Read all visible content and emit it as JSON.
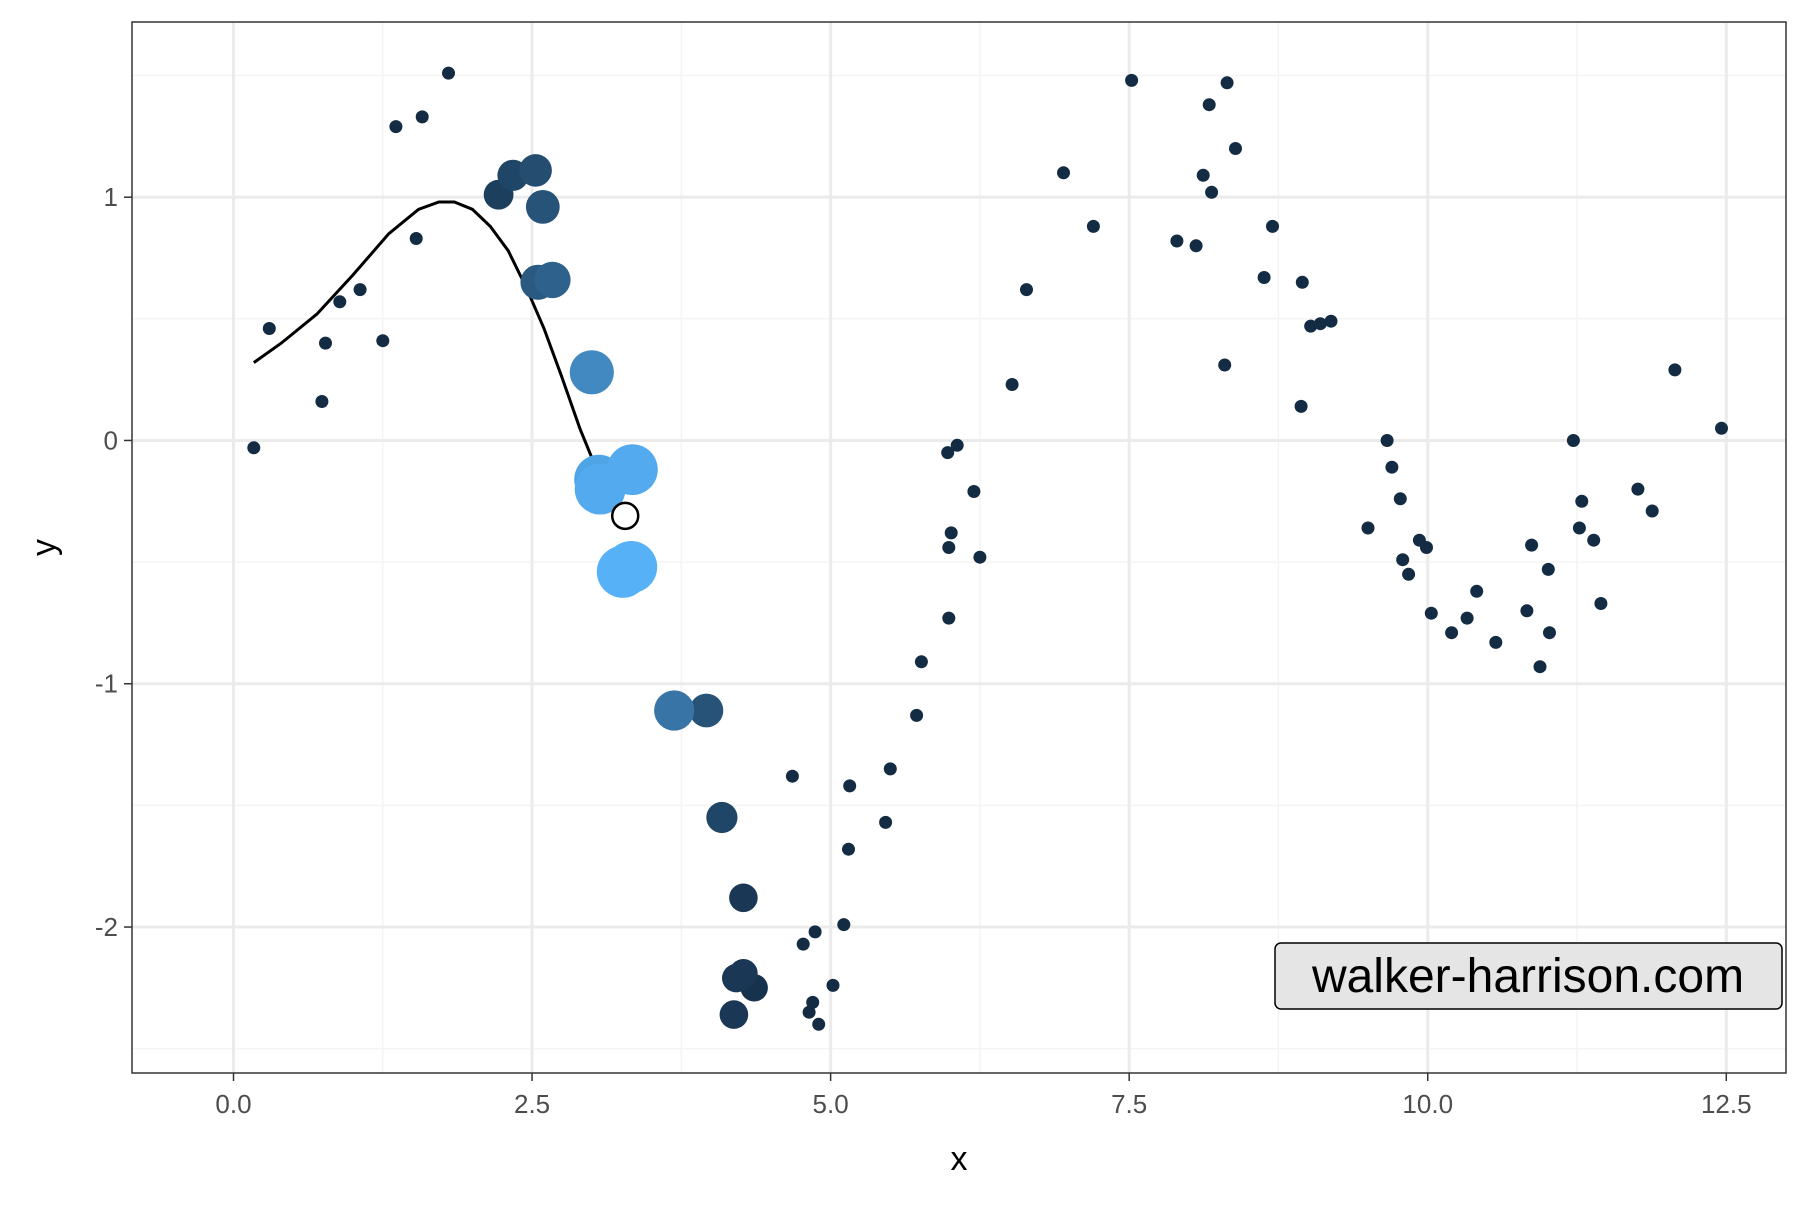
{
  "chart_data": {
    "type": "scatter",
    "title": "",
    "xlabel": "x",
    "ylabel": "y",
    "xlim": [
      -0.85,
      13.0
    ],
    "ylim": [
      -2.6,
      1.72
    ],
    "x_ticks": [
      0.0,
      2.5,
      5.0,
      7.5,
      10.0,
      12.5
    ],
    "x_tick_labels": [
      "0.0",
      "2.5",
      "5.0",
      "7.5",
      "10.0",
      "12.5"
    ],
    "y_ticks": [
      -2,
      -1,
      0,
      1
    ],
    "y_tick_labels": [
      "-2",
      "-1",
      "0",
      "1"
    ],
    "grid": true,
    "legend": "none",
    "points": [
      {
        "x": 0.17,
        "y": -0.03,
        "w": 0
      },
      {
        "x": 0.3,
        "y": 0.46,
        "w": 0
      },
      {
        "x": 0.74,
        "y": 0.16,
        "w": 0
      },
      {
        "x": 0.77,
        "y": 0.4,
        "w": 0
      },
      {
        "x": 0.89,
        "y": 0.57,
        "w": 0
      },
      {
        "x": 1.06,
        "y": 0.62,
        "w": 0
      },
      {
        "x": 1.25,
        "y": 0.41,
        "w": 0
      },
      {
        "x": 1.36,
        "y": 1.29,
        "w": 0
      },
      {
        "x": 1.53,
        "y": 0.83,
        "w": 0
      },
      {
        "x": 1.58,
        "y": 1.33,
        "w": 0
      },
      {
        "x": 1.8,
        "y": 1.51,
        "w": 0
      },
      {
        "x": 2.22,
        "y": 1.01,
        "w": 0.15
      },
      {
        "x": 2.34,
        "y": 1.09,
        "w": 0.2
      },
      {
        "x": 2.53,
        "y": 1.11,
        "w": 0.25
      },
      {
        "x": 2.59,
        "y": 0.96,
        "w": 0.3
      },
      {
        "x": 2.55,
        "y": 0.65,
        "w": 0.35
      },
      {
        "x": 2.67,
        "y": 0.66,
        "w": 0.4
      },
      {
        "x": 3.0,
        "y": 0.28,
        "w": 0.7
      },
      {
        "x": 3.06,
        "y": -0.16,
        "w": 0.9
      },
      {
        "x": 3.07,
        "y": -0.2,
        "w": 0.95
      },
      {
        "x": 3.34,
        "y": -0.12,
        "w": 0.95
      },
      {
        "x": 3.26,
        "y": -0.54,
        "w": 1.0
      },
      {
        "x": 3.33,
        "y": -0.52,
        "w": 1.0
      },
      {
        "x": 3.69,
        "y": -1.11,
        "w": 0.55
      },
      {
        "x": 3.96,
        "y": -1.11,
        "w": 0.3
      },
      {
        "x": 4.09,
        "y": -1.55,
        "w": 0.2
      },
      {
        "x": 4.27,
        "y": -1.88,
        "w": 0.1
      },
      {
        "x": 4.21,
        "y": -2.21,
        "w": 0.1
      },
      {
        "x": 4.27,
        "y": -2.19,
        "w": 0.1
      },
      {
        "x": 4.36,
        "y": -2.25,
        "w": 0.05
      },
      {
        "x": 4.19,
        "y": -2.36,
        "w": 0.1
      },
      {
        "x": 4.68,
        "y": -1.38,
        "w": 0
      },
      {
        "x": 4.77,
        "y": -2.07,
        "w": 0
      },
      {
        "x": 4.82,
        "y": -2.35,
        "w": 0
      },
      {
        "x": 4.85,
        "y": -2.31,
        "w": 0
      },
      {
        "x": 4.87,
        "y": -2.02,
        "w": 0
      },
      {
        "x": 4.9,
        "y": -2.4,
        "w": 0
      },
      {
        "x": 5.02,
        "y": -2.24,
        "w": 0
      },
      {
        "x": 5.11,
        "y": -1.99,
        "w": 0
      },
      {
        "x": 5.15,
        "y": -1.68,
        "w": 0
      },
      {
        "x": 5.16,
        "y": -1.42,
        "w": 0
      },
      {
        "x": 5.46,
        "y": -1.57,
        "w": 0
      },
      {
        "x": 5.5,
        "y": -1.35,
        "w": 0
      },
      {
        "x": 5.72,
        "y": -1.13,
        "w": 0
      },
      {
        "x": 5.76,
        "y": -0.91,
        "w": 0
      },
      {
        "x": 5.98,
        "y": -0.05,
        "w": 0
      },
      {
        "x": 5.99,
        "y": -0.44,
        "w": 0
      },
      {
        "x": 5.99,
        "y": -0.73,
        "w": 0
      },
      {
        "x": 6.01,
        "y": -0.38,
        "w": 0
      },
      {
        "x": 6.06,
        "y": -0.02,
        "w": 0
      },
      {
        "x": 6.2,
        "y": -0.21,
        "w": 0
      },
      {
        "x": 6.25,
        "y": -0.48,
        "w": 0
      },
      {
        "x": 6.52,
        "y": 0.23,
        "w": 0
      },
      {
        "x": 6.64,
        "y": 0.62,
        "w": 0
      },
      {
        "x": 6.95,
        "y": 1.1,
        "w": 0
      },
      {
        "x": 7.2,
        "y": 0.88,
        "w": 0
      },
      {
        "x": 7.52,
        "y": 1.48,
        "w": 0
      },
      {
        "x": 7.9,
        "y": 0.82,
        "w": 0
      },
      {
        "x": 8.06,
        "y": 0.8,
        "w": 0
      },
      {
        "x": 8.12,
        "y": 1.09,
        "w": 0
      },
      {
        "x": 8.17,
        "y": 1.38,
        "w": 0
      },
      {
        "x": 8.19,
        "y": 1.02,
        "w": 0
      },
      {
        "x": 8.3,
        "y": 0.31,
        "w": 0
      },
      {
        "x": 8.32,
        "y": 1.47,
        "w": 0
      },
      {
        "x": 8.39,
        "y": 1.2,
        "w": 0
      },
      {
        "x": 8.63,
        "y": 0.67,
        "w": 0
      },
      {
        "x": 8.7,
        "y": 0.88,
        "w": 0
      },
      {
        "x": 8.94,
        "y": 0.14,
        "w": 0
      },
      {
        "x": 8.95,
        "y": 0.65,
        "w": 0
      },
      {
        "x": 9.02,
        "y": 0.47,
        "w": 0
      },
      {
        "x": 9.1,
        "y": 0.48,
        "w": 0
      },
      {
        "x": 9.19,
        "y": 0.49,
        "w": 0
      },
      {
        "x": 9.5,
        "y": -0.36,
        "w": 0
      },
      {
        "x": 9.66,
        "y": 0.0,
        "w": 0
      },
      {
        "x": 9.7,
        "y": -0.11,
        "w": 0
      },
      {
        "x": 9.77,
        "y": -0.24,
        "w": 0
      },
      {
        "x": 9.79,
        "y": -0.49,
        "w": 0
      },
      {
        "x": 9.84,
        "y": -0.55,
        "w": 0
      },
      {
        "x": 9.93,
        "y": -0.41,
        "w": 0
      },
      {
        "x": 9.99,
        "y": -0.44,
        "w": 0
      },
      {
        "x": 10.03,
        "y": -0.71,
        "w": 0
      },
      {
        "x": 10.2,
        "y": -0.79,
        "w": 0
      },
      {
        "x": 10.33,
        "y": -0.73,
        "w": 0
      },
      {
        "x": 10.41,
        "y": -0.62,
        "w": 0
      },
      {
        "x": 10.57,
        "y": -0.83,
        "w": 0
      },
      {
        "x": 10.83,
        "y": -0.7,
        "w": 0
      },
      {
        "x": 10.87,
        "y": -0.43,
        "w": 0
      },
      {
        "x": 10.94,
        "y": -0.93,
        "w": 0
      },
      {
        "x": 11.01,
        "y": -0.53,
        "w": 0
      },
      {
        "x": 11.02,
        "y": -0.79,
        "w": 0
      },
      {
        "x": 11.22,
        "y": 0.0,
        "w": 0
      },
      {
        "x": 11.27,
        "y": -0.36,
        "w": 0
      },
      {
        "x": 11.29,
        "y": -0.25,
        "w": 0
      },
      {
        "x": 11.39,
        "y": -0.41,
        "w": 0
      },
      {
        "x": 11.45,
        "y": -0.67,
        "w": 0
      },
      {
        "x": 11.76,
        "y": -0.2,
        "w": 0
      },
      {
        "x": 11.88,
        "y": -0.29,
        "w": 0
      },
      {
        "x": 12.07,
        "y": 0.29,
        "w": 0
      },
      {
        "x": 12.46,
        "y": 0.05,
        "w": 0
      }
    ],
    "curve": {
      "x": [
        0.17,
        0.4,
        0.7,
        1.0,
        1.3,
        1.55,
        1.72,
        1.85,
        2.0,
        2.15,
        2.3,
        2.45,
        2.6,
        2.75,
        2.9,
        3.05,
        3.2,
        3.28
      ],
      "y": [
        0.32,
        0.4,
        0.52,
        0.68,
        0.85,
        0.95,
        0.98,
        0.98,
        0.95,
        0.88,
        0.78,
        0.63,
        0.46,
        0.26,
        0.05,
        -0.13,
        -0.26,
        -0.31
      ]
    },
    "focal_point": {
      "x": 3.28,
      "y": -0.31
    },
    "annotation": "walker-harrison.com",
    "colors": {
      "point_dark": "#132B43",
      "point_light": "#56B1F7",
      "curve": "#000000",
      "focal_fill": "#ffffff",
      "panel_border": "#333333",
      "grid_major": "#EBEBEB",
      "grid_minor": "#F4F4F4",
      "label_box_fill": "#E5E5E5"
    }
  }
}
